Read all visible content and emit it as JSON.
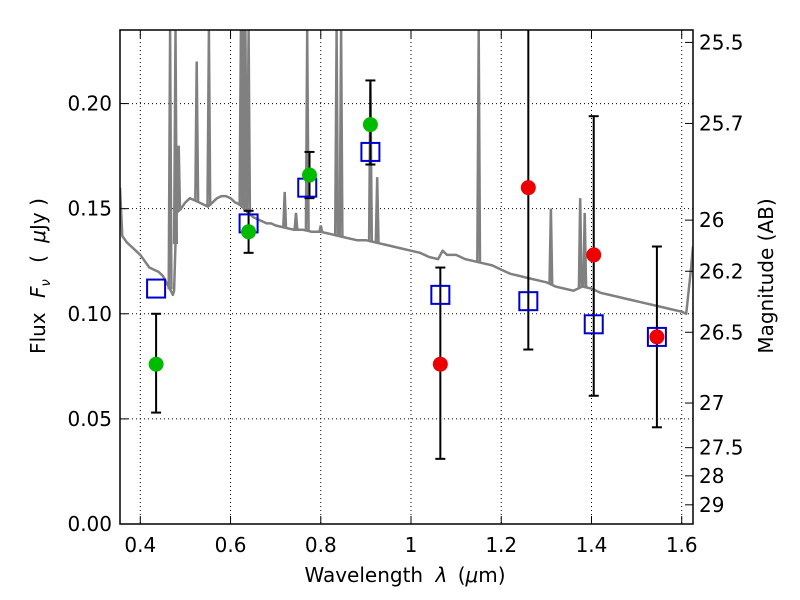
{
  "chart_data": {
    "type": "scatter",
    "xlabel_text": "Wavelength",
    "xlabel_symbol": "λ",
    "xlabel_unit_open": "(",
    "xlabel_unit_mu": "μ",
    "xlabel_unit_rest": "m)",
    "ylabel_text": "Flux",
    "ylabel_symbol": "F",
    "ylabel_sub": "ν",
    "ylabel_unit_open": "(",
    "ylabel_unit_mu": "μ",
    "ylabel_unit_rest": "Jy )",
    "y2label": "Magnitude (AB)",
    "xlim": [
      0.355,
      1.625
    ],
    "ylim": [
      0.0,
      0.235
    ],
    "x_ticks": [
      {
        "value": 0.4,
        "label": "0.4"
      },
      {
        "value": 0.6,
        "label": "0.6"
      },
      {
        "value": 0.8,
        "label": "0.8"
      },
      {
        "value": 1.0,
        "label": "1"
      },
      {
        "value": 1.2,
        "label": "1.2"
      },
      {
        "value": 1.4,
        "label": "1.4"
      },
      {
        "value": 1.6,
        "label": "1.6"
      }
    ],
    "y_ticks": [
      {
        "value": 0.0,
        "label": "0.00"
      },
      {
        "value": 0.05,
        "label": "0.05"
      },
      {
        "value": 0.1,
        "label": "0.10"
      },
      {
        "value": 0.15,
        "label": "0.15"
      },
      {
        "value": 0.2,
        "label": "0.20"
      }
    ],
    "mag_ticks": [
      {
        "value": 25.5,
        "label": "25.5"
      },
      {
        "value": 25.7,
        "label": "25.7"
      },
      {
        "value": 26,
        "label": "26"
      },
      {
        "value": 26.2,
        "label": "26.2"
      },
      {
        "value": 26.5,
        "label": "26.5"
      },
      {
        "value": 27,
        "label": "27"
      },
      {
        "value": 27.5,
        "label": "27.5"
      },
      {
        "value": 28,
        "label": "28"
      },
      {
        "value": 29,
        "label": "29"
      }
    ],
    "grid": true,
    "colors": {
      "model": "#808080",
      "model_points": "#0000cc",
      "detections": "#00bb00",
      "nir_points": "#ee0000",
      "errorbar": "#000000"
    },
    "model_spectrum": {
      "x": [
        0.355,
        0.36,
        0.37,
        0.38,
        0.39,
        0.4,
        0.41,
        0.42,
        0.43,
        0.44,
        0.45,
        0.46,
        0.465,
        0.47,
        0.472,
        0.475,
        0.48,
        0.49,
        0.5,
        0.51,
        0.52,
        0.53,
        0.54,
        0.55,
        0.56,
        0.57,
        0.58,
        0.59,
        0.6,
        0.61,
        0.62,
        0.63,
        0.64,
        0.65,
        0.66,
        0.67,
        0.68,
        0.69,
        0.7,
        0.72,
        0.74,
        0.76,
        0.78,
        0.8,
        0.82,
        0.84,
        0.86,
        0.88,
        0.9,
        0.92,
        0.94,
        0.96,
        0.98,
        1.0,
        1.02,
        1.04,
        1.06,
        1.07,
        1.08,
        1.1,
        1.12,
        1.14,
        1.16,
        1.18,
        1.2,
        1.22,
        1.24,
        1.26,
        1.28,
        1.3,
        1.32,
        1.34,
        1.36,
        1.38,
        1.4,
        1.42,
        1.44,
        1.46,
        1.48,
        1.5,
        1.52,
        1.54,
        1.56,
        1.58,
        1.6,
        1.61,
        1.62,
        1.625
      ],
      "y": [
        0.16,
        0.137,
        0.134,
        0.132,
        0.13,
        0.128,
        0.125,
        0.122,
        0.121,
        0.12,
        0.118,
        0.114,
        0.112,
        0.11,
        0.109,
        0.111,
        0.148,
        0.15,
        0.153,
        0.155,
        0.154,
        0.153,
        0.152,
        0.151,
        0.153,
        0.155,
        0.156,
        0.156,
        0.155,
        0.153,
        0.152,
        0.15,
        0.148,
        0.146,
        0.145,
        0.144,
        0.143,
        0.143,
        0.142,
        0.141,
        0.14,
        0.14,
        0.139,
        0.139,
        0.138,
        0.137,
        0.136,
        0.135,
        0.135,
        0.134,
        0.133,
        0.132,
        0.131,
        0.13,
        0.129,
        0.127,
        0.126,
        0.13,
        0.128,
        0.128,
        0.126,
        0.125,
        0.124,
        0.123,
        0.121,
        0.119,
        0.118,
        0.117,
        0.116,
        0.115,
        0.113,
        0.112,
        0.111,
        0.113,
        0.112,
        0.11,
        0.109,
        0.108,
        0.107,
        0.106,
        0.105,
        0.104,
        0.103,
        0.102,
        0.101,
        0.1,
        0.12,
        0.132
      ]
    },
    "emission_lines": [
      {
        "x": 0.466,
        "peak": 0.235
      },
      {
        "x": 0.478,
        "peak": 0.235
      },
      {
        "x": 0.485,
        "peak": 0.18
      },
      {
        "x": 0.525,
        "peak": 0.22
      },
      {
        "x": 0.552,
        "peak": 0.235
      },
      {
        "x": 0.623,
        "peak": 0.235
      },
      {
        "x": 0.628,
        "peak": 0.235
      },
      {
        "x": 0.633,
        "peak": 0.235
      },
      {
        "x": 0.64,
        "peak": 0.235
      },
      {
        "x": 0.72,
        "peak": 0.158
      },
      {
        "x": 0.745,
        "peak": 0.148
      },
      {
        "x": 0.77,
        "peak": 0.235
      },
      {
        "x": 0.8,
        "peak": 0.142
      },
      {
        "x": 0.835,
        "peak": 0.235
      },
      {
        "x": 0.845,
        "peak": 0.235
      },
      {
        "x": 0.91,
        "peak": 0.21
      },
      {
        "x": 0.925,
        "peak": 0.165
      },
      {
        "x": 1.15,
        "peak": 0.235
      },
      {
        "x": 1.31,
        "peak": 0.15
      },
      {
        "x": 1.375,
        "peak": 0.155
      },
      {
        "x": 1.385,
        "peak": 0.148
      }
    ],
    "model_points": [
      {
        "x": 0.435,
        "y": 0.112
      },
      {
        "x": 0.64,
        "y": 0.143
      },
      {
        "x": 0.77,
        "y": 0.16
      },
      {
        "x": 0.91,
        "y": 0.177
      },
      {
        "x": 1.065,
        "y": 0.109
      },
      {
        "x": 1.26,
        "y": 0.106
      },
      {
        "x": 1.405,
        "y": 0.095
      },
      {
        "x": 1.545,
        "y": 0.089
      }
    ],
    "detections": [
      {
        "x": 0.435,
        "y": 0.076,
        "yerr_low": 0.053,
        "yerr_high": 0.1
      },
      {
        "x": 0.64,
        "y": 0.139,
        "yerr_low": 0.129,
        "yerr_high": 0.149
      },
      {
        "x": 0.775,
        "y": 0.166,
        "yerr_low": 0.155,
        "yerr_high": 0.177
      },
      {
        "x": 0.91,
        "y": 0.19,
        "yerr_low": 0.171,
        "yerr_high": 0.211
      }
    ],
    "nir_points": [
      {
        "x": 1.065,
        "y": 0.076,
        "yerr_low": 0.031,
        "yerr_high": 0.122
      },
      {
        "x": 1.26,
        "y": 0.16,
        "yerr_low": 0.083,
        "yerr_high": 0.235
      },
      {
        "x": 1.405,
        "y": 0.128,
        "yerr_low": 0.061,
        "yerr_high": 0.194
      },
      {
        "x": 1.545,
        "y": 0.089,
        "yerr_low": 0.046,
        "yerr_high": 0.132
      }
    ]
  }
}
